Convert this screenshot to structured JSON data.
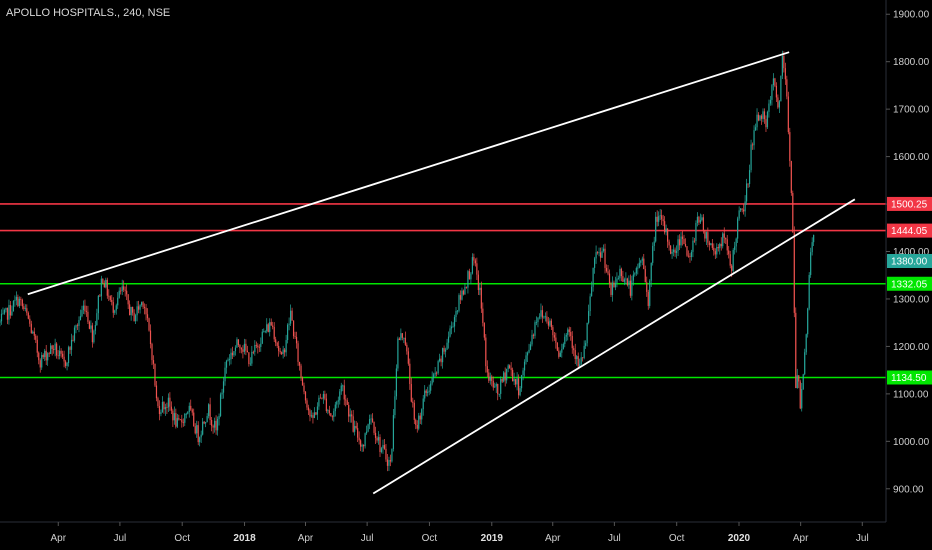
{
  "chart_data": {
    "type": "line",
    "title": "APOLLO HOSPITALS., 240, NSE",
    "colors": {
      "background": "#000000",
      "up": "#26a69a",
      "down": "#ef5350",
      "resistance": "#f23645",
      "support": "#00e600",
      "trendline": "#ffffff",
      "last_price": "#26a69a"
    },
    "y_axis": {
      "range": [
        830,
        1930
      ],
      "ticks": [
        "900.00",
        "1000.00",
        "1100.00",
        "1200.00",
        "1300.00",
        "1400.00",
        "1500.00",
        "1600.00",
        "1700.00",
        "1800.00",
        "1900.00"
      ],
      "position": "right"
    },
    "x_axis": {
      "range": [
        "2017-01-05",
        "2020-08-05"
      ],
      "ticks": [
        {
          "label": "Apr",
          "date": "2017-04-01",
          "year": false
        },
        {
          "label": "Jul",
          "date": "2017-07-01",
          "year": false
        },
        {
          "label": "Oct",
          "date": "2017-10-01",
          "year": false
        },
        {
          "label": "2018",
          "date": "2018-01-01",
          "year": true
        },
        {
          "label": "Apr",
          "date": "2018-04-01",
          "year": false
        },
        {
          "label": "Jul",
          "date": "2018-07-01",
          "year": false
        },
        {
          "label": "Oct",
          "date": "2018-10-01",
          "year": false
        },
        {
          "label": "2019",
          "date": "2019-01-01",
          "year": true
        },
        {
          "label": "Apr",
          "date": "2019-04-01",
          "year": false
        },
        {
          "label": "Jul",
          "date": "2019-07-01",
          "year": false
        },
        {
          "label": "Oct",
          "date": "2019-10-01",
          "year": false
        },
        {
          "label": "2020",
          "date": "2020-01-01",
          "year": true
        },
        {
          "label": "Apr",
          "date": "2020-04-01",
          "year": false
        },
        {
          "label": "Jul",
          "date": "2020-07-01",
          "year": false
        }
      ]
    },
    "price_path": [
      [
        "2017-01-05",
        1250
      ],
      [
        "2017-02-01",
        1300
      ],
      [
        "2017-02-15",
        1260
      ],
      [
        "2017-03-05",
        1170
      ],
      [
        "2017-03-25",
        1200
      ],
      [
        "2017-04-10",
        1160
      ],
      [
        "2017-04-25",
        1230
      ],
      [
        "2017-05-10",
        1290
      ],
      [
        "2017-05-22",
        1220
      ],
      [
        "2017-06-05",
        1350
      ],
      [
        "2017-06-20",
        1280
      ],
      [
        "2017-07-05",
        1320
      ],
      [
        "2017-07-20",
        1260
      ],
      [
        "2017-08-05",
        1300
      ],
      [
        "2017-08-18",
        1180
      ],
      [
        "2017-08-25",
        1070
      ],
      [
        "2017-09-10",
        1080
      ],
      [
        "2017-09-25",
        1030
      ],
      [
        "2017-10-10",
        1070
      ],
      [
        "2017-10-25",
        1010
      ],
      [
        "2017-11-08",
        1070
      ],
      [
        "2017-11-20",
        1020
      ],
      [
        "2017-12-05",
        1170
      ],
      [
        "2017-12-25",
        1210
      ],
      [
        "2018-01-10",
        1170
      ],
      [
        "2018-01-25",
        1220
      ],
      [
        "2018-02-10",
        1250
      ],
      [
        "2018-02-25",
        1170
      ],
      [
        "2018-03-10",
        1270
      ],
      [
        "2018-03-25",
        1140
      ],
      [
        "2018-04-10",
        1040
      ],
      [
        "2018-04-25",
        1100
      ],
      [
        "2018-05-10",
        1050
      ],
      [
        "2018-05-25",
        1120
      ],
      [
        "2018-06-10",
        1030
      ],
      [
        "2018-06-25",
        990
      ],
      [
        "2018-07-05",
        1060
      ],
      [
        "2018-07-20",
        990
      ],
      [
        "2018-08-05",
        950
      ],
      [
        "2018-08-15",
        1210
      ],
      [
        "2018-08-25",
        1230
      ],
      [
        "2018-09-10",
        1020
      ],
      [
        "2018-09-25",
        1100
      ],
      [
        "2018-10-10",
        1140
      ],
      [
        "2018-10-25",
        1200
      ],
      [
        "2018-11-10",
        1280
      ],
      [
        "2018-11-25",
        1340
      ],
      [
        "2018-12-05",
        1380
      ],
      [
        "2018-12-15",
        1310
      ],
      [
        "2018-12-25",
        1140
      ],
      [
        "2019-01-10",
        1100
      ],
      [
        "2019-01-25",
        1160
      ],
      [
        "2019-02-10",
        1110
      ],
      [
        "2019-02-25",
        1200
      ],
      [
        "2019-03-10",
        1270
      ],
      [
        "2019-03-25",
        1260
      ],
      [
        "2019-04-10",
        1190
      ],
      [
        "2019-04-25",
        1240
      ],
      [
        "2019-05-10",
        1150
      ],
      [
        "2019-05-20",
        1210
      ],
      [
        "2019-06-01",
        1380
      ],
      [
        "2019-06-15",
        1400
      ],
      [
        "2019-06-25",
        1310
      ],
      [
        "2019-07-10",
        1360
      ],
      [
        "2019-07-25",
        1320
      ],
      [
        "2019-08-10",
        1390
      ],
      [
        "2019-08-20",
        1300
      ],
      [
        "2019-09-01",
        1480
      ],
      [
        "2019-09-15",
        1440
      ],
      [
        "2019-09-25",
        1390
      ],
      [
        "2019-10-10",
        1440
      ],
      [
        "2019-10-20",
        1370
      ],
      [
        "2019-11-01",
        1480
      ],
      [
        "2019-11-15",
        1430
      ],
      [
        "2019-11-25",
        1400
      ],
      [
        "2019-12-10",
        1430
      ],
      [
        "2019-12-20",
        1360
      ],
      [
        "2019-12-31",
        1470
      ],
      [
        "2020-01-10",
        1500
      ],
      [
        "2020-01-20",
        1630
      ],
      [
        "2020-02-01",
        1700
      ],
      [
        "2020-02-10",
        1660
      ],
      [
        "2020-02-20",
        1760
      ],
      [
        "2020-02-28",
        1700
      ],
      [
        "2020-03-05",
        1800
      ],
      [
        "2020-03-10",
        1760
      ],
      [
        "2020-03-15",
        1620
      ],
      [
        "2020-03-20",
        1480
      ],
      [
        "2020-03-25",
        1100
      ],
      [
        "2020-03-28",
        1140
      ],
      [
        "2020-04-01",
        1070
      ],
      [
        "2020-04-05",
        1160
      ],
      [
        "2020-04-10",
        1250
      ],
      [
        "2020-04-15",
        1380
      ],
      [
        "2020-04-20",
        1450
      ],
      [
        "2020-04-22",
        1380
      ]
    ],
    "horizontal_levels": [
      {
        "value": 1500.25,
        "label": "1500.25",
        "role": "resistance"
      },
      {
        "value": 1444.05,
        "label": "1444.05",
        "role": "resistance"
      },
      {
        "value": 1332.05,
        "label": "1332.05",
        "role": "support"
      },
      {
        "value": 1134.5,
        "label": "1134.50",
        "role": "support"
      }
    ],
    "last_price": {
      "value": 1380.0,
      "label": "1380.00"
    },
    "trendlines": [
      {
        "from": [
          "2017-02-15",
          1310
        ],
        "to": [
          "2020-03-15",
          1820
        ]
      },
      {
        "from": [
          "2018-07-10",
          890
        ],
        "to": [
          "2020-06-20",
          1510
        ]
      }
    ],
    "grid": false,
    "legend": "none"
  }
}
